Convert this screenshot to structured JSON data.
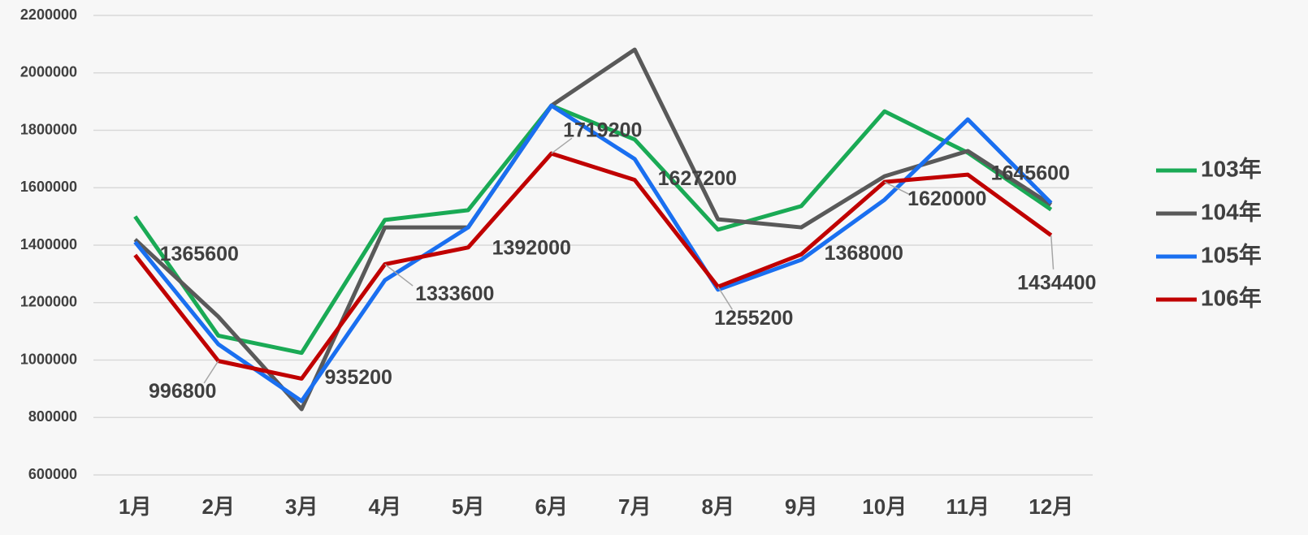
{
  "chart_data": {
    "type": "line",
    "categories": [
      "1月",
      "2月",
      "3月",
      "4月",
      "5月",
      "6月",
      "7月",
      "8月",
      "9月",
      "10月",
      "11月",
      "12月"
    ],
    "series": [
      {
        "name": "103年",
        "color": "#1aaa55",
        "values": [
          1500000,
          1085000,
          1025000,
          1488000,
          1522000,
          1886000,
          1768000,
          1454000,
          1536000,
          1866000,
          1722000,
          1524000
        ]
      },
      {
        "name": "104年",
        "color": "#595959",
        "values": [
          1420000,
          1151000,
          829000,
          1462000,
          1462000,
          1886000,
          2081000,
          1490000,
          1462000,
          1640000,
          1728000,
          1541000
        ]
      },
      {
        "name": "105年",
        "color": "#1a6ff0",
        "values": [
          1411000,
          1055000,
          857000,
          1278000,
          1462000,
          1886000,
          1700000,
          1245000,
          1349000,
          1558000,
          1838000,
          1547000
        ]
      },
      {
        "name": "106年",
        "color": "#c00000",
        "values": [
          1365600,
          996800,
          935200,
          1333600,
          1392000,
          1719200,
          1627200,
          1255200,
          1368000,
          1620000,
          1645600,
          1434400
        ]
      }
    ],
    "data_labels_series": 3,
    "ylim": [
      600000,
      2200000
    ],
    "yticks": [
      600000,
      800000,
      1000000,
      1200000,
      1400000,
      1600000,
      1800000,
      2000000,
      2200000
    ],
    "grid": true,
    "legend": "right"
  }
}
